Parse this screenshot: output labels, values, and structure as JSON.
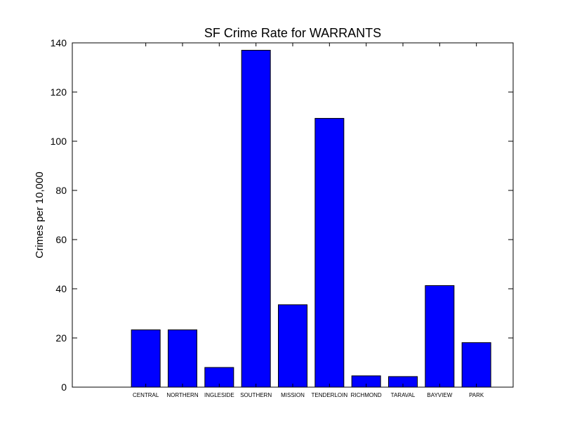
{
  "chart_data": {
    "type": "bar",
    "title": "SF Crime Rate for WARRANTS",
    "xlabel": "",
    "ylabel": "Crimes per 10,000",
    "categories": [
      "CENTRAL",
      "NORTHERN",
      "INGLESIDE",
      "SOUTHERN",
      "MISSION",
      "TENDERLOIN",
      "RICHMOND",
      "TARAVAL",
      "BAYVIEW",
      "PARK"
    ],
    "values": [
      23.3,
      23.3,
      8.0,
      137.0,
      33.5,
      109.3,
      4.6,
      4.3,
      41.3,
      18.1
    ],
    "ylim": [
      0,
      140
    ],
    "yticks": [
      0,
      20,
      40,
      60,
      80,
      100,
      120,
      140
    ],
    "bar_color": "#0000ff",
    "grid": false,
    "legend": "none"
  }
}
